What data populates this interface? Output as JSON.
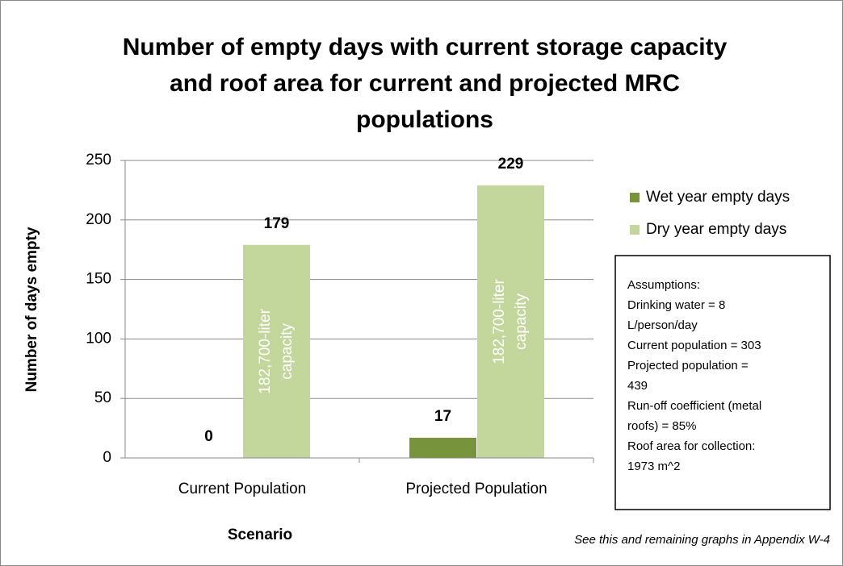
{
  "chart_data": {
    "type": "bar",
    "title_lines": [
      "Number of empty days with current storage capacity",
      "and roof area for current and projected MRC",
      "populations"
    ],
    "x_label": "Scenario",
    "y_label": "Number of days empty",
    "categories": [
      "Current Population",
      "Projected Population"
    ],
    "series": [
      {
        "name": "Wet year empty days",
        "color": "#77933c",
        "values": [
          0,
          17
        ]
      },
      {
        "name": "Dry year empty days",
        "color": "#c3d69b",
        "values": [
          179,
          229
        ]
      }
    ],
    "bar_annotations": [
      [
        "182,700-liter",
        "capacity"
      ],
      [
        "182,700-liter",
        "capacity"
      ]
    ],
    "ylim": [
      0,
      250
    ],
    "yticks": [
      0,
      50,
      100,
      150,
      200,
      250
    ],
    "grid": true,
    "legend": "right",
    "assumptions": [
      "Assumptions:",
      "Drinking water = 8",
      "L/person/day",
      "Current population = 303",
      "Projected population =",
      "439",
      "Run-off coefficient (metal",
      "roofs) = 85%",
      "Roof area for collection:",
      "1973 m^2"
    ],
    "footnote": "See this and remaining graphs in Appendix W-4"
  }
}
